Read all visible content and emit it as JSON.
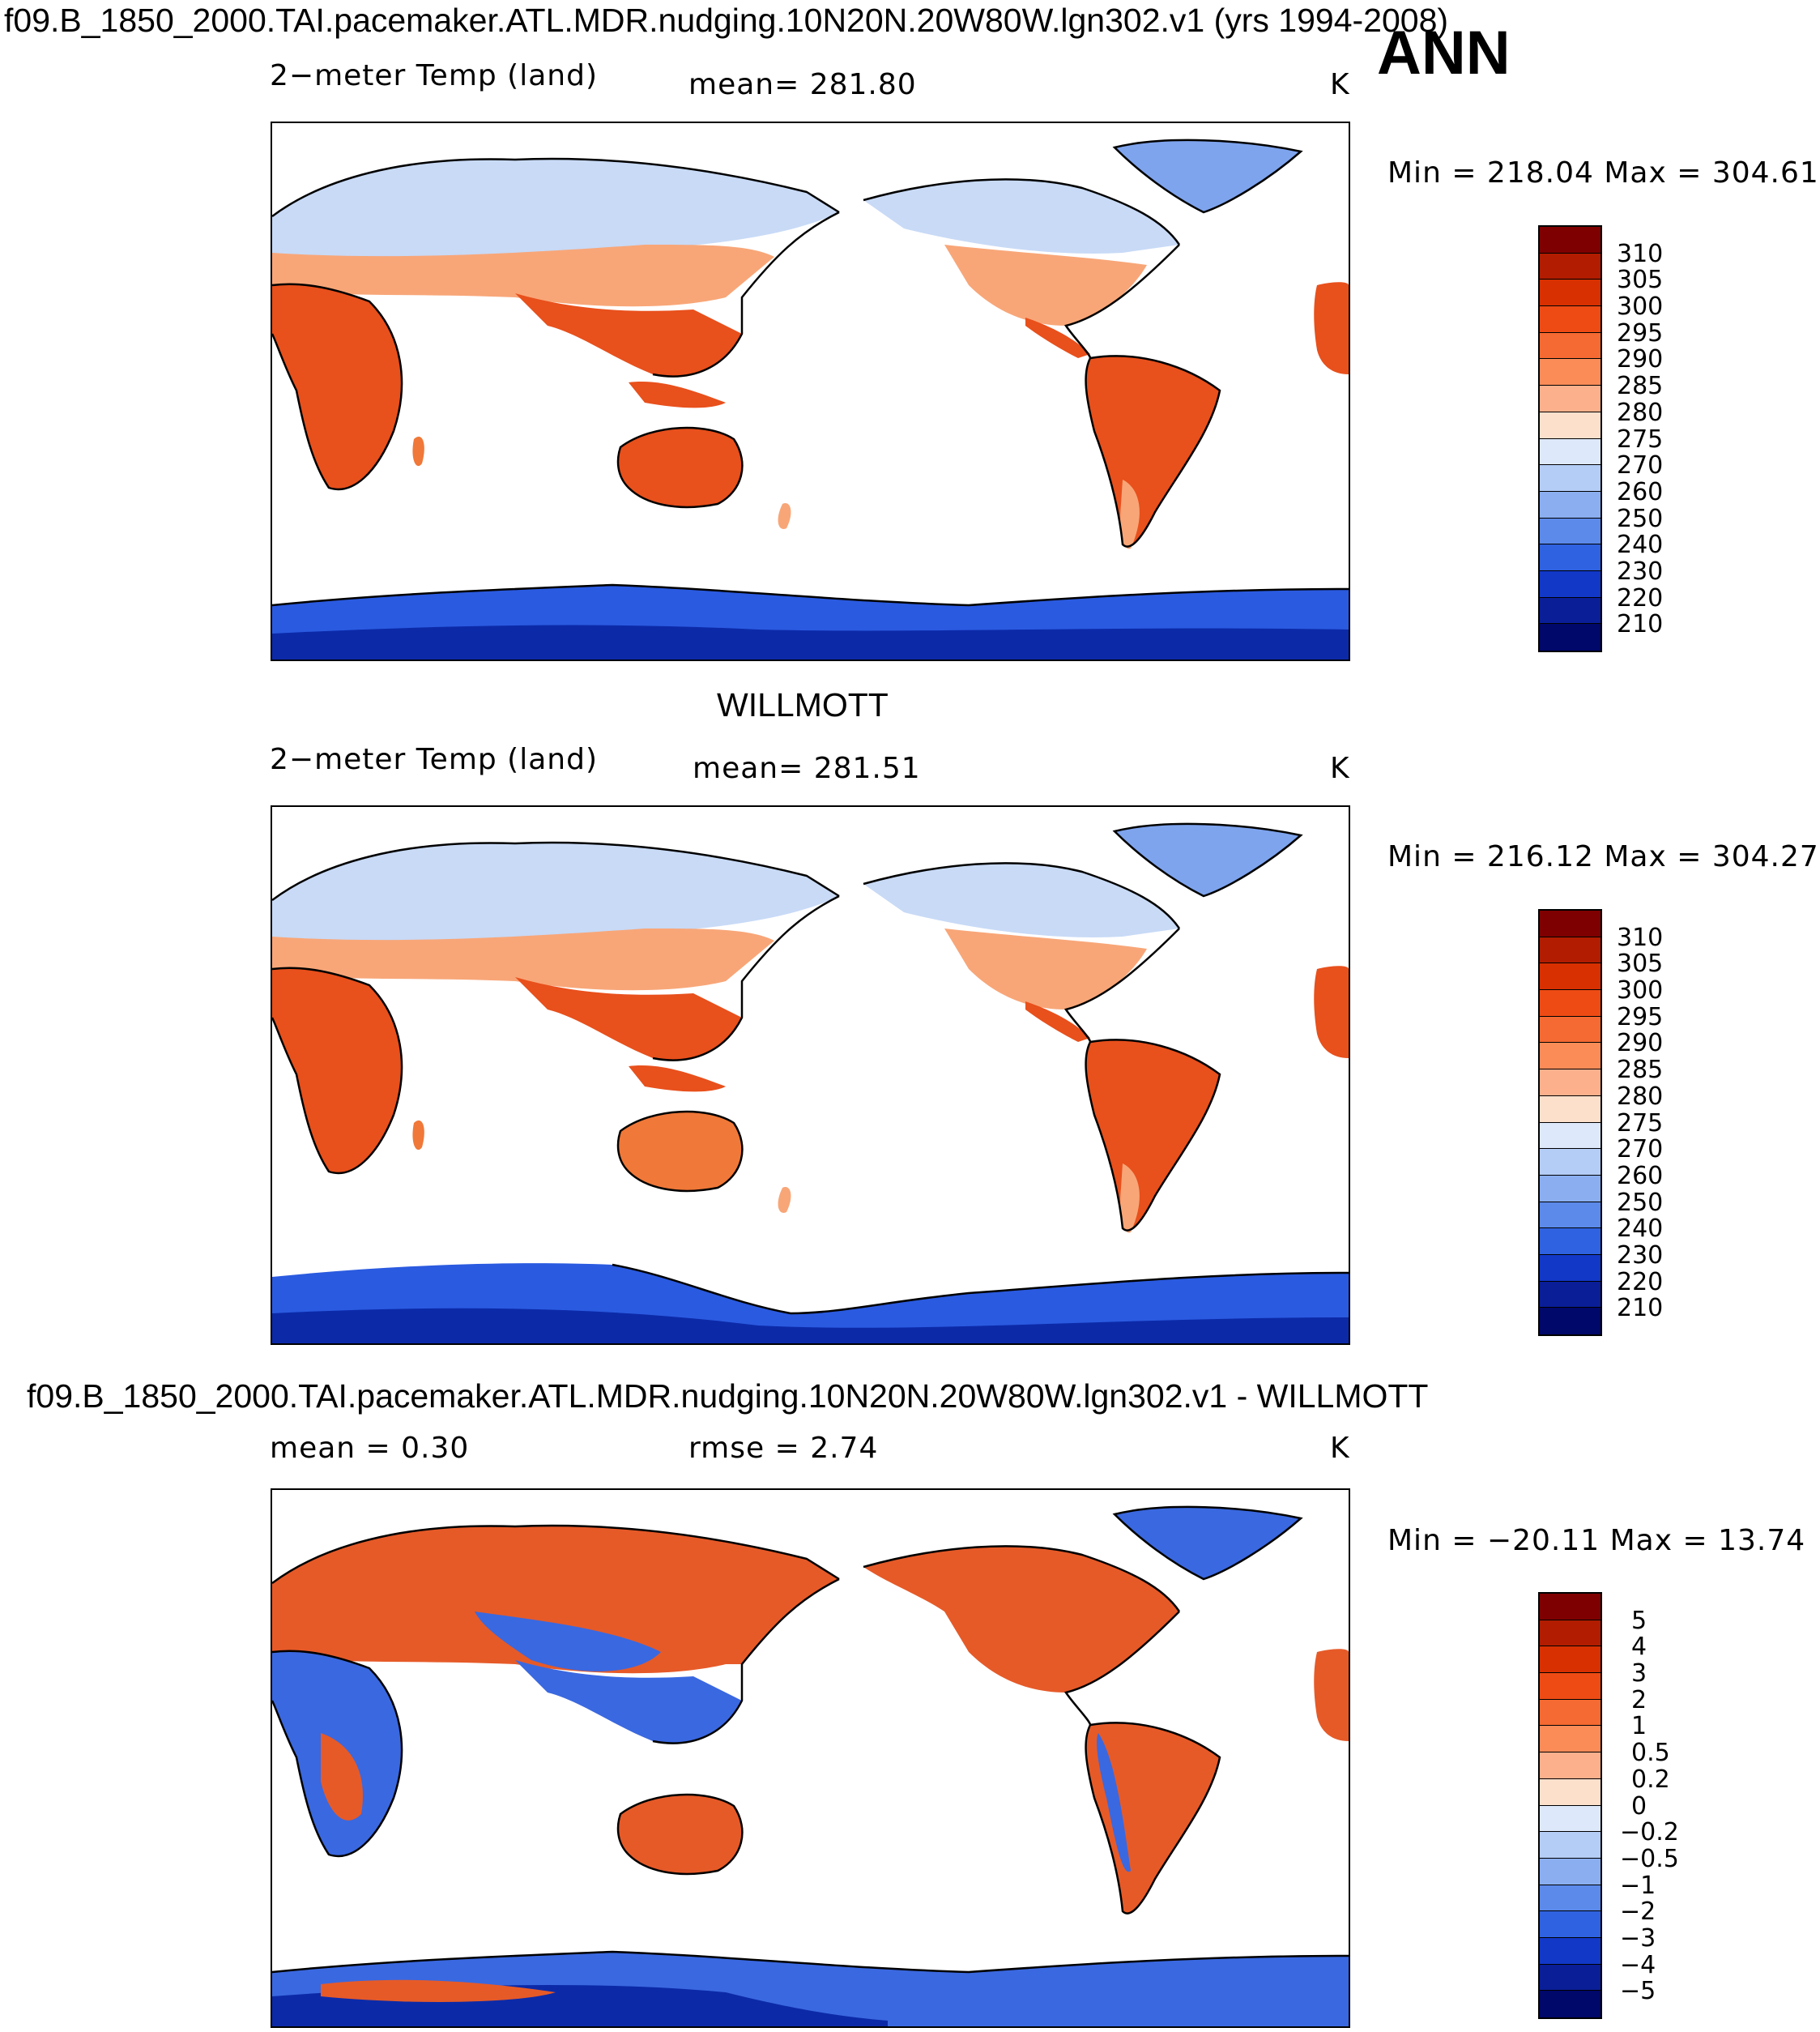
{
  "figure_title": "f09.B_1850_2000.TAI.pacemaker.ATL.MDR.nudging.10N20N.20W80W.lgn302.v1 (yrs 1994-2008)",
  "season": "ANN",
  "panels": [
    {
      "title": "",
      "variable": "2−meter Temp (land)",
      "stat": "mean=  281.80",
      "units": "K",
      "minmax": "Min  =  218.04  Max  =  304.61",
      "colorbar": {
        "labels": [
          "310",
          "305",
          "300",
          "295",
          "290",
          "285",
          "280",
          "275",
          "270",
          "260",
          "250",
          "240",
          "230",
          "220",
          "210"
        ],
        "colors": [
          "#7f0000",
          "#b21c00",
          "#d83000",
          "#ee4b14",
          "#f56a32",
          "#fb8c58",
          "#fdb08c",
          "#fde0cc",
          "#dde9fb",
          "#b4cdf6",
          "#8aaef0",
          "#5c8aea",
          "#2f62e0",
          "#1238c8",
          "#0a1e98",
          "#00086a"
        ]
      }
    },
    {
      "title": "WILLMOTT",
      "variable": "2−meter Temp (land)",
      "stat": "mean=  281.51",
      "units": "K",
      "minmax": "Min  =  216.12  Max  =  304.27",
      "colorbar": {
        "labels": [
          "310",
          "305",
          "300",
          "295",
          "290",
          "285",
          "280",
          "275",
          "270",
          "260",
          "250",
          "240",
          "230",
          "220",
          "210"
        ],
        "colors": [
          "#7f0000",
          "#b21c00",
          "#d83000",
          "#ee4b14",
          "#f56a32",
          "#fb8c58",
          "#fdb08c",
          "#fde0cc",
          "#dde9fb",
          "#b4cdf6",
          "#8aaef0",
          "#5c8aea",
          "#2f62e0",
          "#1238c8",
          "#0a1e98",
          "#00086a"
        ]
      }
    },
    {
      "title": "f09.B_1850_2000.TAI.pacemaker.ATL.MDR.nudging.10N20N.20W80W.lgn302.v1 - WILLMOTT",
      "variable": "mean  =     0.30",
      "stat": "rmse  =      2.74",
      "units": "K",
      "minmax": "Min  =  −20.11  Max  =    13.74",
      "colorbar": {
        "labels": [
          "5",
          "4",
          "3",
          "2",
          "1",
          "0.5",
          "0.2",
          "0",
          "−0.2",
          "−0.5",
          "−1",
          "−2",
          "−3",
          "−4",
          "−5"
        ],
        "colors": [
          "#7f0000",
          "#b21c00",
          "#d83000",
          "#ee4b14",
          "#f56a32",
          "#fb8c58",
          "#fdb08c",
          "#fde0cc",
          "#dde9fb",
          "#b4cdf6",
          "#8aaef0",
          "#5c8aea",
          "#2f62e0",
          "#1238c8",
          "#0a1e98",
          "#00086a"
        ]
      }
    }
  ],
  "map_colors": {
    "tropics": "#e8501c",
    "warm": "#f07838",
    "mild": "#f8a678",
    "cool": "#c8daf6",
    "cold": "#7ea4ee",
    "polar": "#2a5ae0",
    "deep": "#0c2aa8",
    "diff_warm": "#e65a28",
    "diff_cold": "#3a68e0"
  }
}
